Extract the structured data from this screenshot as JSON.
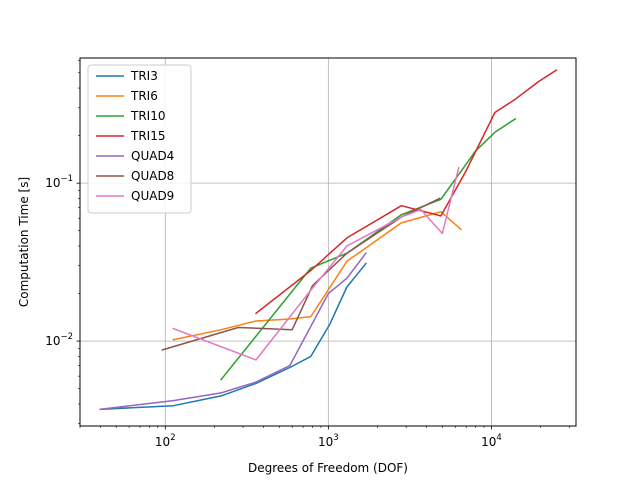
{
  "chart_data": {
    "type": "line",
    "xlabel": "Degrees of Freedom (DOF)",
    "ylabel": "Computation Time [s]",
    "xscale": "log",
    "yscale": "log",
    "xlim": [
      30,
      33000
    ],
    "ylim": [
      0.0029,
      0.62
    ],
    "x_ticks": [
      {
        "value": 100,
        "base": "10",
        "exp": "2"
      },
      {
        "value": 1000,
        "base": "10",
        "exp": "3"
      },
      {
        "value": 10000,
        "base": "10",
        "exp": "4"
      }
    ],
    "y_ticks": [
      {
        "value": 0.01,
        "base": "10",
        "exp": "−2"
      },
      {
        "value": 0.1,
        "base": "10",
        "exp": "−1"
      }
    ],
    "grid": true,
    "legend_position": "top-left",
    "series": [
      {
        "name": "TRI3",
        "color": "#1f77b4",
        "x": [
          40,
          112,
          220,
          360,
          580,
          780,
          1020,
          1300,
          1700
        ],
        "y": [
          0.0037,
          0.0039,
          0.0045,
          0.0054,
          0.0068,
          0.008,
          0.0128,
          0.022,
          0.031
        ]
      },
      {
        "name": "TRI6",
        "color": "#ff7f0e",
        "x": [
          112,
          220,
          360,
          580,
          780,
          1300,
          2800,
          4900,
          6500
        ],
        "y": [
          0.0102,
          0.0118,
          0.0134,
          0.0138,
          0.0143,
          0.032,
          0.056,
          0.066,
          0.051
        ]
      },
      {
        "name": "TRI10",
        "color": "#2ca02c",
        "x": [
          220,
          780,
          1300,
          2800,
          4900,
          8000,
          10500,
          14000
        ],
        "y": [
          0.0057,
          0.029,
          0.036,
          0.063,
          0.079,
          0.16,
          0.21,
          0.255
        ]
      },
      {
        "name": "TRI15",
        "color": "#d62728",
        "x": [
          360,
          780,
          1300,
          2800,
          4900,
          7000,
          10500,
          14000,
          19500,
          25000
        ],
        "y": [
          0.015,
          0.028,
          0.045,
          0.072,
          0.062,
          0.12,
          0.28,
          0.34,
          0.44,
          0.52
        ]
      },
      {
        "name": "QUAD4",
        "color": "#9467bd",
        "x": [
          40,
          112,
          220,
          360,
          580,
          1000,
          1300,
          1700
        ],
        "y": [
          0.0037,
          0.0042,
          0.0047,
          0.0055,
          0.007,
          0.02,
          0.025,
          0.036
        ]
      },
      {
        "name": "QUAD8",
        "color": "#8c564b",
        "x": [
          96,
          280,
          600,
          800,
          1300,
          2800,
          4800
        ],
        "y": [
          0.0088,
          0.0122,
          0.0118,
          0.0225,
          0.036,
          0.061,
          0.08
        ]
      },
      {
        "name": "QUAD9",
        "color": "#e377c2",
        "x": [
          112,
          360,
          780,
          1300,
          2800,
          3700,
          5000,
          6300
        ],
        "y": [
          0.012,
          0.0076,
          0.021,
          0.04,
          0.061,
          0.068,
          0.048,
          0.125
        ]
      }
    ]
  }
}
